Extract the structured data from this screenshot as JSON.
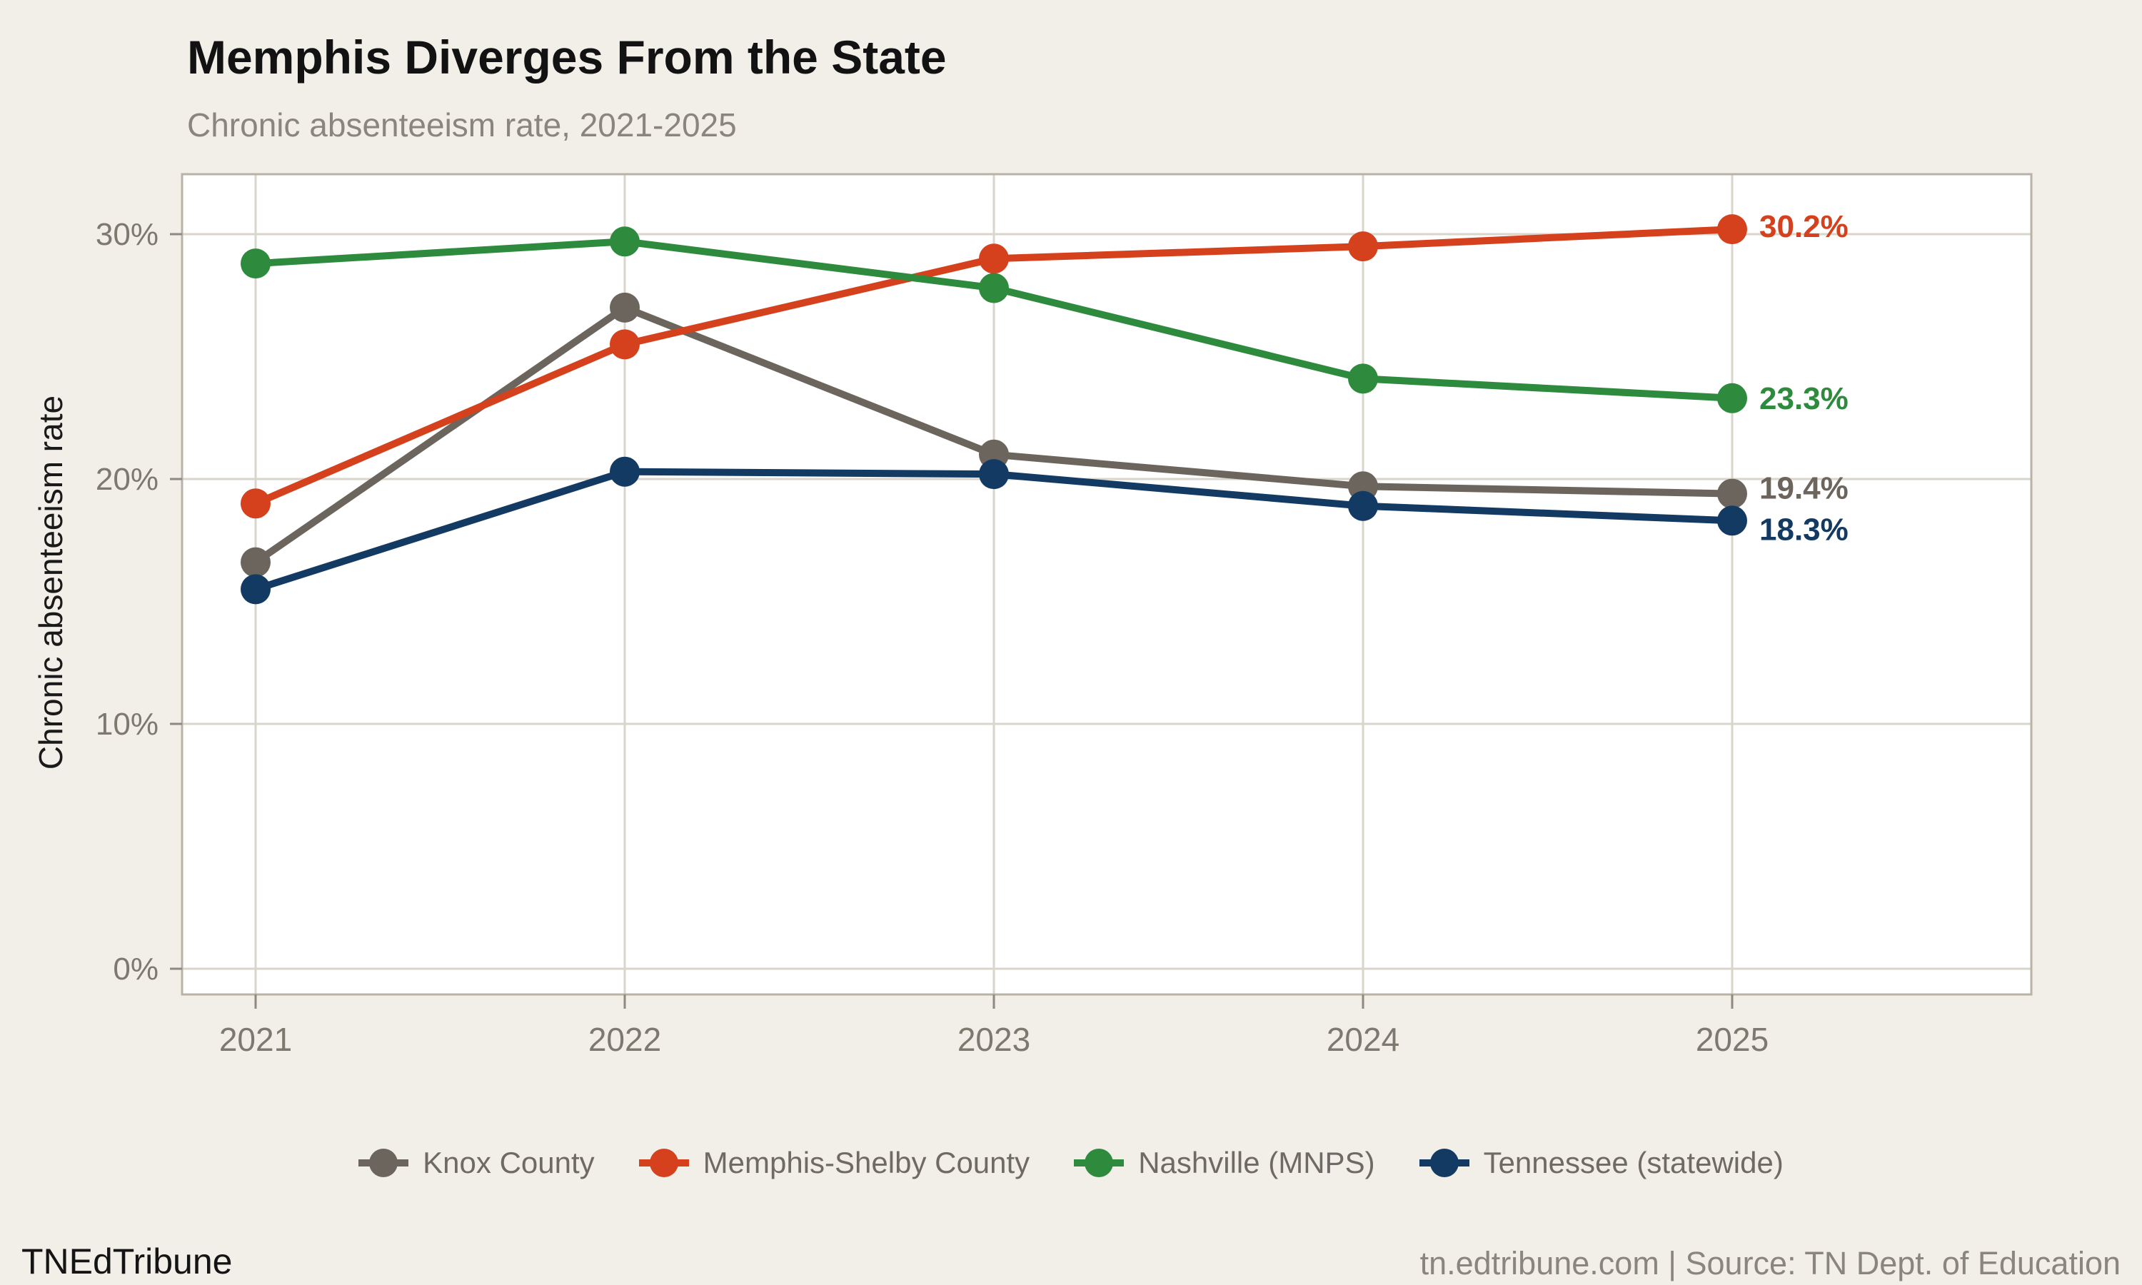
{
  "header": {
    "title": "Memphis Diverges From the State",
    "subtitle": "Chronic absenteeism rate, 2021-2025"
  },
  "footer": {
    "brand": "TNEdTribune",
    "source": "tn.edtribune.com | Source: TN Dept. of Education"
  },
  "chart_data": {
    "type": "line",
    "title": "Memphis Diverges From the State",
    "subtitle": "Chronic absenteeism rate, 2021-2025",
    "x": [
      2021,
      2022,
      2023,
      2024,
      2025
    ],
    "xlabel": "",
    "ylabel": "Chronic absenteeism rate",
    "ylim": [
      0,
      32.5
    ],
    "yticks": [
      0,
      10,
      20,
      30
    ],
    "ytick_labels": [
      "0%",
      "10%",
      "20%",
      "30%"
    ],
    "grid": true,
    "legend_position": "bottom",
    "series": [
      {
        "name": "Knox County",
        "color": "#6b655d",
        "values": [
          16.6,
          27.0,
          21.0,
          19.7,
          19.4
        ],
        "end_label": "19.4%",
        "label_dy": -8
      },
      {
        "name": "Memphis-Shelby County",
        "color": "#d5411d",
        "values": [
          19.0,
          25.5,
          29.0,
          29.5,
          30.2
        ],
        "end_label": "30.2%",
        "label_dy": -4
      },
      {
        "name": "Nashville (MNPS)",
        "color": "#2e8b3d",
        "values": [
          28.8,
          29.7,
          27.8,
          24.1,
          23.3
        ],
        "end_label": "23.3%",
        "label_dy": 0
      },
      {
        "name": "Tennessee (statewide)",
        "color": "#133a63",
        "values": [
          15.5,
          20.3,
          20.2,
          18.9,
          18.3
        ],
        "end_label": "18.3%",
        "label_dy": 12
      }
    ]
  },
  "colors": {
    "background": "#f2efe9",
    "panel": "#ffffff",
    "grid": "#dad5ca",
    "panel_border": "#b9b3a7",
    "tick_mark": "#8f8a80",
    "axis_text": "#7e796f",
    "legend_text": "#6f6b64"
  }
}
